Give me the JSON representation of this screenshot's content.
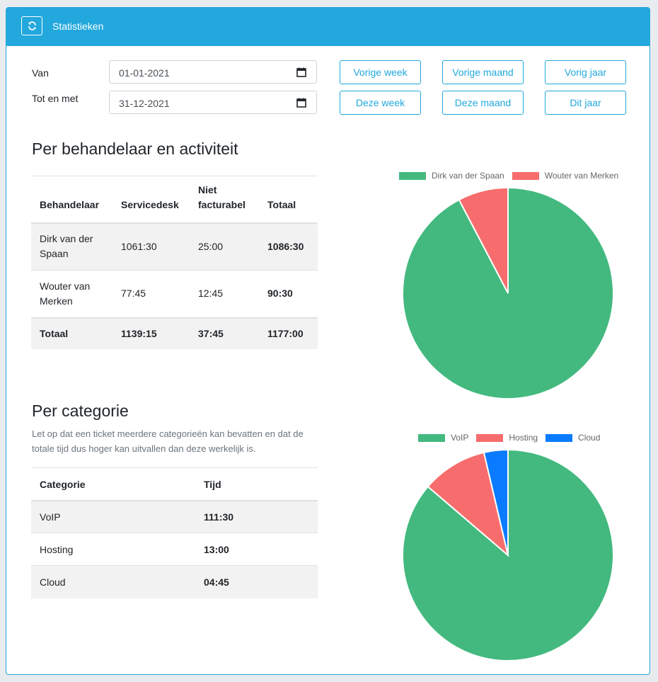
{
  "header": {
    "title": "Statistieken",
    "refresh_icon": "refresh-icon"
  },
  "filters": {
    "from_label": "Van",
    "to_label": "Tot en met",
    "from_value": "01-01-2021",
    "to_value": "31-12-2021",
    "buttons": [
      "Vorige week",
      "Vorige maand",
      "Vorig jaar",
      "Deze week",
      "Deze maand",
      "Dit jaar"
    ]
  },
  "section1": {
    "title": "Per behandelaar en activiteit",
    "headers": [
      "Behandelaar",
      "Servicedesk",
      "Niet facturabel",
      "Totaal"
    ],
    "rows": [
      [
        "Dirk van der Spaan",
        "1061:30",
        "25:00",
        "1086:30"
      ],
      [
        "Wouter van Merken",
        "77:45",
        "12:45",
        "90:30"
      ]
    ],
    "footer": [
      "Totaal",
      "1139:15",
      "37:45",
      "1177:00"
    ]
  },
  "section2": {
    "title": "Per categorie",
    "note": "Let op dat een ticket meerdere categorieën kan bevatten en dat de totale tijd dus hoger kan uitvallen dan deze werkelijk is.",
    "headers": [
      "Categorie",
      "Tijd"
    ],
    "rows": [
      [
        "VoIP",
        "111:30"
      ],
      [
        "Hosting",
        "13:00"
      ],
      [
        "Cloud",
        "04:45"
      ]
    ]
  },
  "chart_data": [
    {
      "type": "pie",
      "categories": [
        "Dirk van der Spaan",
        "Wouter van Merken"
      ],
      "values": [
        1086.5,
        90.5
      ],
      "colors": [
        "#43b97f",
        "#f76d6d"
      ],
      "legend": "top"
    },
    {
      "type": "pie",
      "categories": [
        "VoIP",
        "Hosting",
        "Cloud"
      ],
      "values": [
        111.5,
        13.0,
        4.75
      ],
      "colors": [
        "#43b97f",
        "#f76d6d",
        "#0a7bff"
      ],
      "legend": "top"
    }
  ]
}
